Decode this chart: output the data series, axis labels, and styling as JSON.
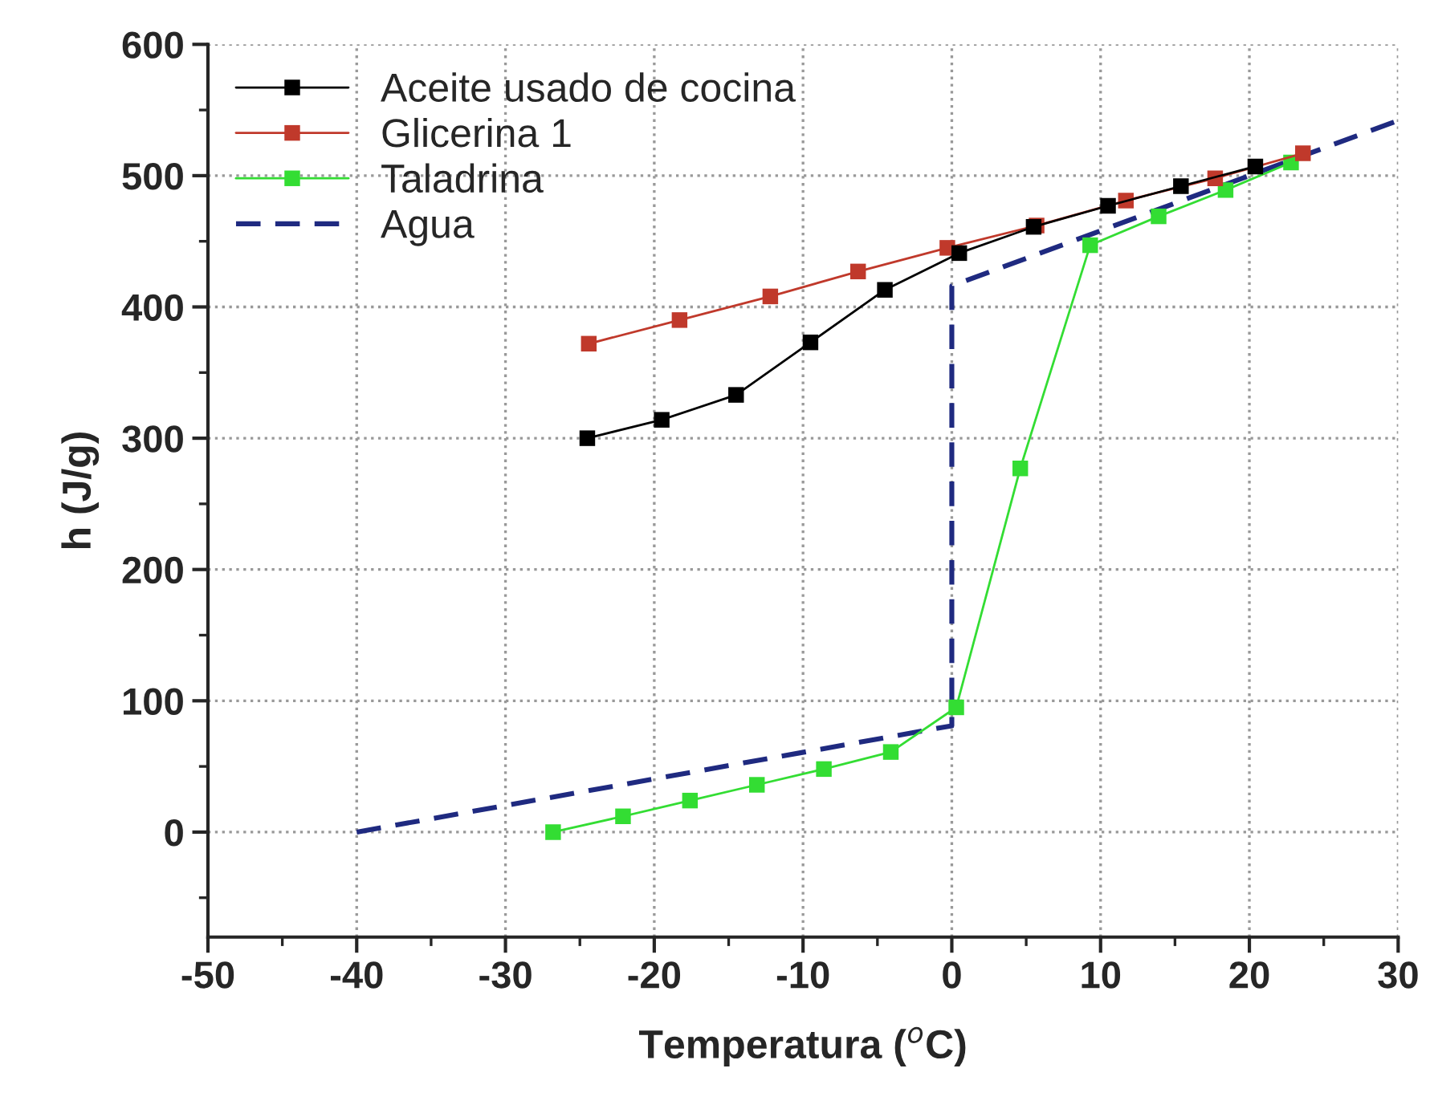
{
  "chart_data": {
    "type": "line",
    "xlabel": "Temperatura ($^{o}$C)",
    "ylabel": "h (J/g)",
    "xlim": [
      -50,
      30
    ],
    "ylim": [
      -80,
      600
    ],
    "xticks": [
      -50,
      -40,
      -30,
      -20,
      -10,
      0,
      10,
      20,
      30
    ],
    "yticks": [
      0,
      100,
      200,
      300,
      400,
      500,
      600
    ],
    "grid": true,
    "legend": "top left",
    "series": [
      {
        "name": "Aceite usado de cocina",
        "color": "#000000",
        "marker": "square",
        "line_style": "solid",
        "x": [
          -24.5,
          -19.5,
          -14.5,
          -9.5,
          -4.5,
          0.5,
          5.5,
          10.5,
          15.4,
          20.4
        ],
        "values": [
          300,
          314,
          333,
          373,
          413,
          441,
          461,
          477,
          492,
          507
        ]
      },
      {
        "name": "Glicerina 1",
        "color": "#c0392b",
        "marker": "square",
        "line_style": "solid",
        "x": [
          -24.4,
          -18.3,
          -12.2,
          -6.3,
          -0.3,
          5.7,
          11.7,
          17.7,
          23.6
        ],
        "values": [
          372,
          390,
          408,
          427,
          445,
          462,
          481,
          498,
          517
        ]
      },
      {
        "name": "Taladrina",
        "color": "#33dd33",
        "marker": "square",
        "line_style": "solid",
        "x": [
          -26.8,
          -22.1,
          -17.6,
          -13.1,
          -8.6,
          -4.1,
          0.3,
          4.6,
          9.3,
          13.9,
          18.4,
          22.8
        ],
        "values": [
          0,
          12,
          24,
          36,
          48,
          61,
          95,
          277,
          447,
          469,
          489,
          510
        ]
      },
      {
        "name": "Agua",
        "color": "#1f2a80",
        "marker": "none",
        "line_style": "dashed",
        "x": [
          -40,
          0,
          0,
          30
        ],
        "values": [
          0,
          81,
          416,
          542
        ]
      }
    ]
  }
}
